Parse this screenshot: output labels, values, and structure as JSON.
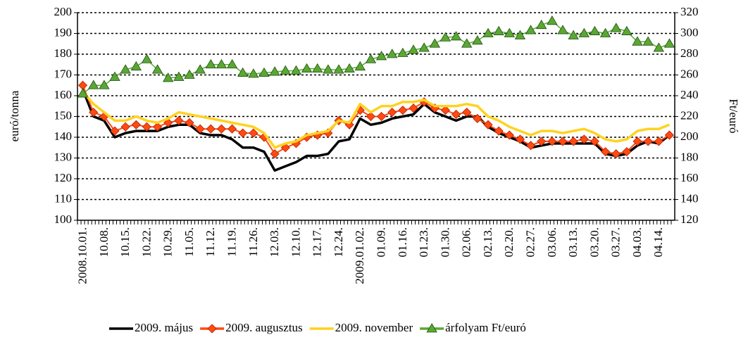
{
  "chart_data": {
    "type": "line",
    "y_label": "euró/tonna",
    "y2_label": "Ft/euró",
    "categories": [
      "2008.10.01.",
      null,
      "10.08.",
      null,
      "10.15.",
      null,
      "10.22.",
      null,
      "10.29.",
      null,
      "11.05.",
      null,
      "11.12.",
      null,
      "11.19.",
      null,
      "11.26.",
      null,
      "12.03.",
      null,
      "12.10.",
      null,
      "12.17.",
      null,
      "12.24.",
      null,
      "2009.01.02.",
      null,
      "01.09.",
      null,
      "01.16.",
      null,
      "01.23.",
      null,
      "01.30.",
      null,
      "02.06.",
      null,
      "02.13.",
      null,
      "02.20.",
      null,
      "02.27.",
      null,
      "03.06.",
      null,
      "03.13.",
      null,
      "03.20.",
      null,
      "03.27.",
      null,
      "04.03.",
      null,
      "04.14.",
      null
    ],
    "series": [
      {
        "name": "2009. május",
        "color": "#000000",
        "width": 3.5,
        "marker": null,
        "values": [
          163,
          150,
          148,
          140,
          142,
          143,
          143,
          143,
          145,
          146,
          146,
          142,
          141,
          141,
          139,
          135,
          135,
          133,
          124,
          126,
          128,
          131,
          131,
          132,
          138,
          139,
          149,
          146,
          147,
          149,
          150,
          151,
          156,
          152,
          150,
          148,
          150,
          150,
          145,
          142,
          140,
          138,
          135,
          136,
          137,
          137,
          137,
          137,
          137,
          132,
          131,
          132,
          136,
          138,
          137,
          141
        ]
      },
      {
        "name": "2009. augusztus",
        "color": "#ff4a12",
        "width": 2,
        "marker": "diamond",
        "values": [
          165,
          152,
          150,
          143,
          145,
          146,
          145,
          145,
          147,
          148,
          147,
          144,
          144,
          144,
          144,
          142,
          142,
          140,
          132,
          135,
          137,
          140,
          141,
          142,
          148,
          146,
          153,
          150,
          150,
          152,
          153,
          154,
          157,
          154,
          153,
          151,
          152,
          149,
          146,
          143,
          141,
          139,
          136,
          138,
          138,
          138,
          138,
          139,
          138,
          133,
          132,
          133,
          138,
          138,
          138,
          141
        ]
      },
      {
        "name": "2009. november",
        "color": "#ffd21f",
        "width": 3.5,
        "marker": null,
        "values": [
          162,
          156,
          152,
          148,
          148,
          150,
          148,
          147,
          149,
          152,
          151,
          150,
          149,
          148,
          147,
          146,
          145,
          142,
          135,
          137,
          138,
          141,
          142,
          143,
          148,
          147,
          156,
          152,
          155,
          155,
          157,
          157,
          158,
          155,
          155,
          155,
          156,
          155,
          150,
          148,
          145,
          143,
          141,
          143,
          143,
          142,
          143,
          144,
          142,
          139,
          138,
          139,
          143,
          144,
          144,
          146
        ]
      },
      {
        "name": "árfolyam Ft/euró",
        "color": "#5aa833",
        "width": 1.5,
        "marker": "triangle",
        "axis": "y2",
        "values": [
          242,
          250,
          250,
          258,
          265,
          268,
          275,
          265,
          257,
          258,
          260,
          265,
          270,
          270,
          270,
          262,
          261,
          262,
          263,
          264,
          264,
          266,
          266,
          265,
          265,
          266,
          268,
          275,
          278,
          280,
          281,
          284,
          286,
          290,
          296,
          297,
          290,
          293,
          300,
          302,
          300,
          298,
          303,
          308,
          312,
          303,
          298,
          300,
          302,
          300,
          305,
          302,
          292,
          292,
          286,
          290
        ]
      }
    ],
    "ylim": [
      100,
      200
    ],
    "yticks": [
      100,
      110,
      120,
      130,
      140,
      150,
      160,
      170,
      180,
      190,
      200
    ],
    "y2lim": [
      120,
      320
    ],
    "y2ticks": [
      120,
      140,
      160,
      180,
      200,
      220,
      240,
      260,
      280,
      300,
      320
    ],
    "grid": true,
    "legend": "bottom"
  }
}
